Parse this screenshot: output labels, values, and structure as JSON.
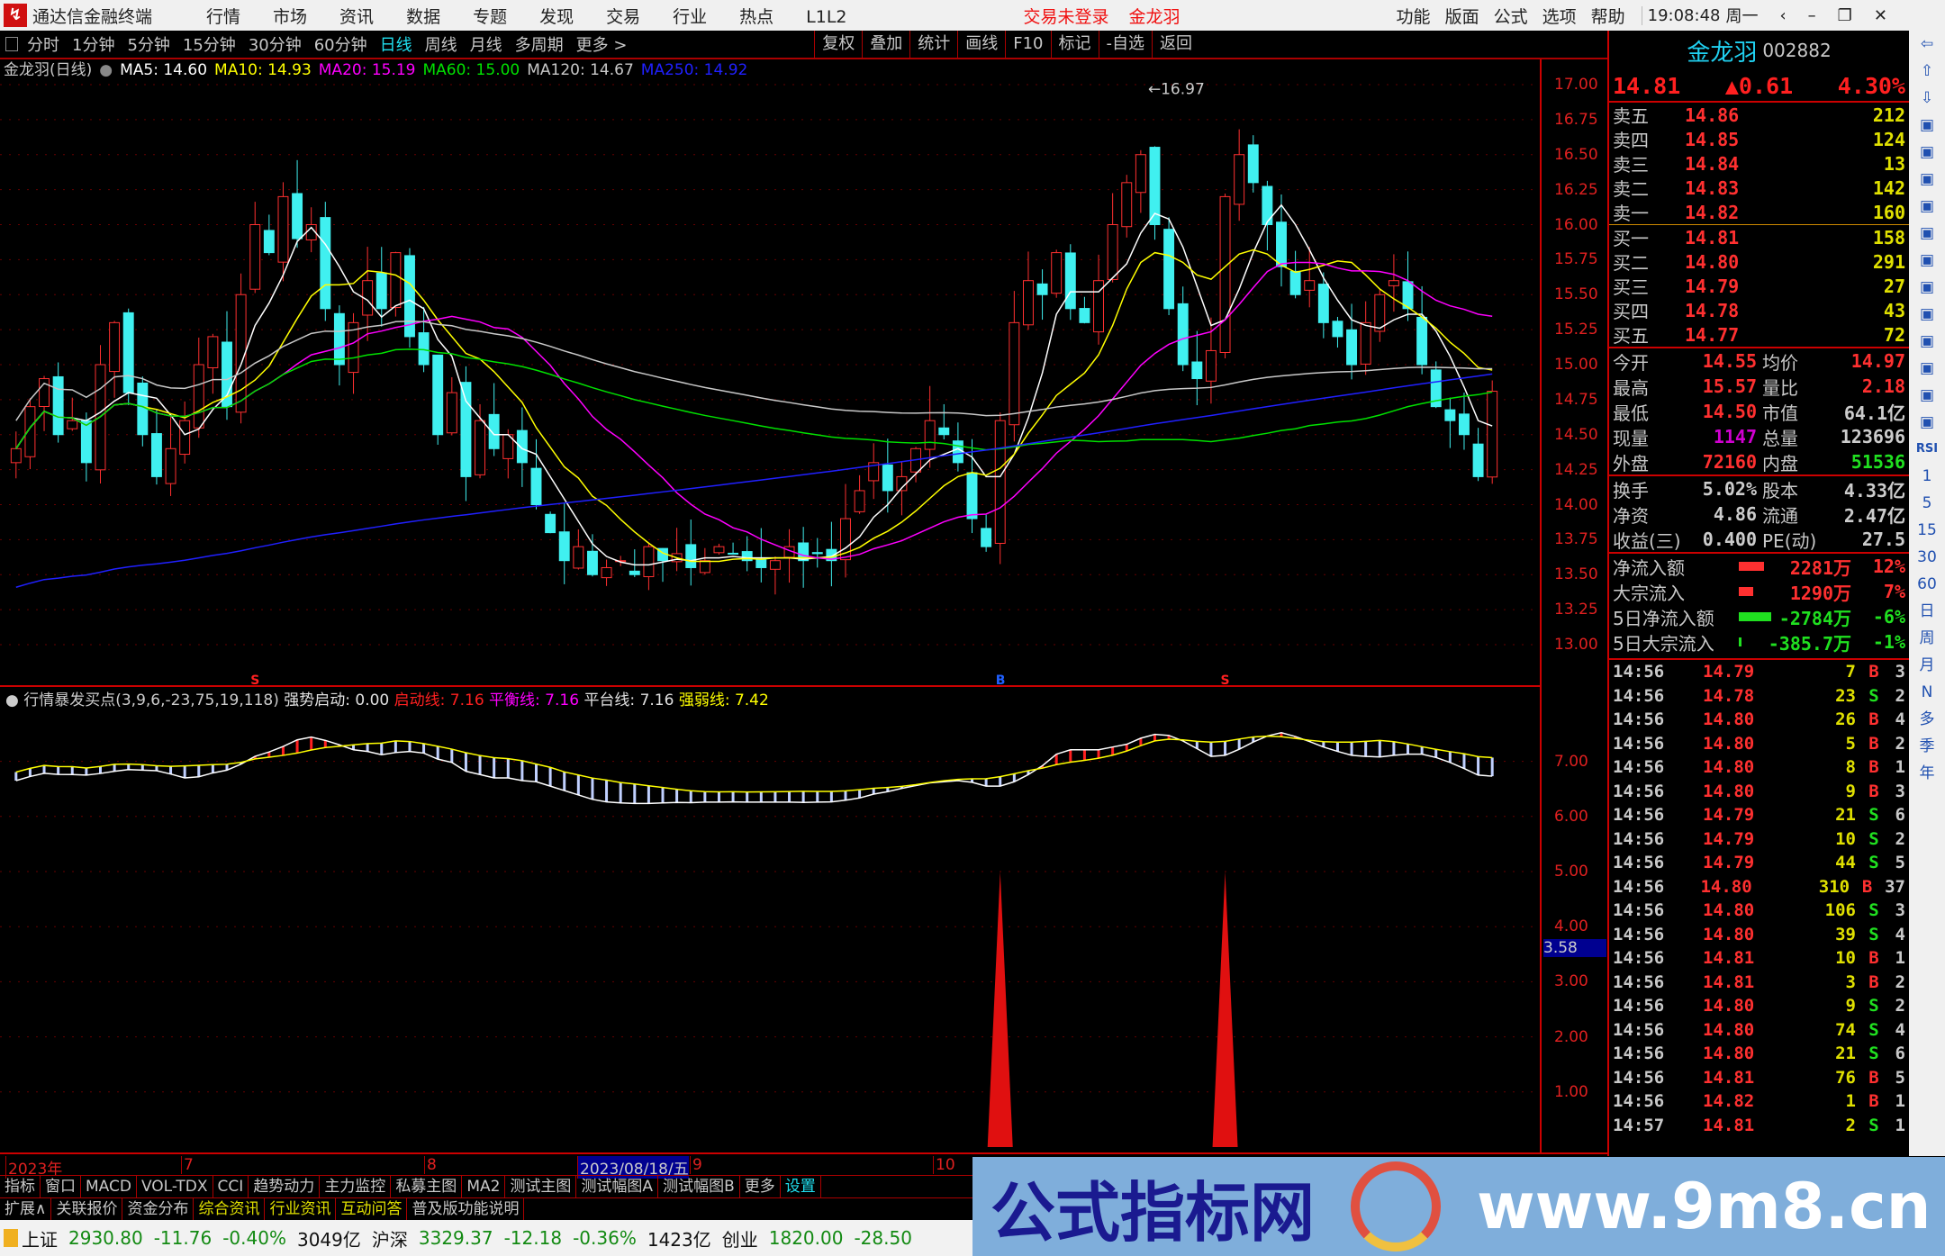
{
  "app": {
    "title": "通达信金融终端",
    "menu": [
      "行情",
      "市场",
      "资讯",
      "数据",
      "专题",
      "发现",
      "交易",
      "行业",
      "热点",
      "L1L2"
    ],
    "login_status": "交易未登录",
    "stock_short": "金龙羽",
    "right_menu": [
      "功能",
      "版面",
      "公式",
      "选项",
      "帮助"
    ],
    "clock": "19:08:48",
    "weekday": "周一"
  },
  "toolbar": {
    "periods": [
      "分时",
      "1分钟",
      "5分钟",
      "15分钟",
      "30分钟",
      "60分钟",
      "日线",
      "周线",
      "月线",
      "多周期",
      "更多 >"
    ],
    "active_period": "日线",
    "buttons": [
      "复权",
      "叠加",
      "统计",
      "画线",
      "F10",
      "标记",
      "-自选",
      "返回"
    ]
  },
  "legend": {
    "name": "金龙羽(日线)",
    "ma": [
      {
        "label": "MA5: 14.60",
        "color": "#ffffff"
      },
      {
        "label": "MA10: 14.93",
        "color": "#ffff00"
      },
      {
        "label": "MA20: 15.19",
        "color": "#ff00ff"
      },
      {
        "label": "MA60: 15.00",
        "color": "#00e000"
      },
      {
        "label": "MA120: 14.67",
        "color": "#c8c8c8"
      },
      {
        "label": "MA250: 14.92",
        "color": "#2020ff"
      }
    ]
  },
  "indicator": {
    "title": "行情暴发买点(3,9,6,-23,75,19,118)",
    "items": [
      {
        "label": "强势启动: 0.00",
        "color": "#e0e0e0"
      },
      {
        "label": "启动线: 7.16",
        "color": "#ff2020"
      },
      {
        "label": "平衡线: 7.16",
        "color": "#ff00ff"
      },
      {
        "label": "平台线: 7.16",
        "color": "#e0e0e0"
      },
      {
        "label": "强弱线: 7.42",
        "color": "#ffff00"
      }
    ],
    "cursor_value": "3.58"
  },
  "chart_data": {
    "type": "candlestick",
    "price_ticks": [
      "17.00",
      "16.75",
      "16.50",
      "16.25",
      "16.00",
      "15.75",
      "15.50",
      "15.25",
      "15.00",
      "14.75",
      "14.50",
      "14.25",
      "14.00",
      "13.75",
      "13.50",
      "13.25",
      "13.00"
    ],
    "ylim": [
      13,
      17
    ],
    "high_label": "16.97",
    "closes": [
      14.4,
      14.7,
      14.9,
      14.5,
      14.6,
      14.3,
      15.0,
      15.3,
      14.8,
      14.5,
      14.2,
      14.4,
      14.6,
      15.0,
      15.2,
      14.7,
      15.5,
      16.0,
      15.8,
      16.2,
      15.9,
      16.0,
      15.4,
      15.0,
      15.3,
      15.6,
      15.4,
      15.8,
      15.2,
      15.0,
      14.5,
      14.8,
      14.2,
      14.6,
      14.4,
      14.5,
      14.3,
      14.0,
      13.8,
      13.6,
      13.7,
      13.5,
      13.55,
      13.6,
      13.5,
      13.7,
      13.6,
      13.65,
      13.55,
      13.6,
      13.7,
      13.65,
      13.6,
      13.55,
      13.6,
      13.7,
      13.6,
      13.65,
      13.6,
      13.9,
      14.1,
      14.3,
      14.1,
      14.2,
      14.4,
      14.6,
      14.5,
      14.3,
      13.9,
      13.7,
      14.6,
      15.3,
      15.6,
      15.5,
      15.8,
      15.4,
      15.3,
      15.6,
      16.0,
      16.3,
      16.5,
      16.0,
      15.4,
      15.0,
      14.9,
      15.1,
      16.2,
      16.5,
      16.3,
      16.0,
      15.7,
      15.5,
      15.6,
      15.3,
      15.2,
      15.0,
      15.3,
      15.5,
      15.6,
      15.4,
      15.0,
      14.7,
      14.6,
      14.5,
      14.2,
      14.81
    ],
    "markers": [
      {
        "index": 17,
        "text": "S",
        "color": "#ff2020"
      },
      {
        "index": 70,
        "text": "B",
        "color": "#2060ff"
      },
      {
        "index": 86,
        "text": "S",
        "color": "#ff2020"
      }
    ],
    "indicator_ticks": [
      "7.00",
      "6.00",
      "5.00",
      "4.00",
      "3.00",
      "2.00",
      "1.00"
    ],
    "indicator_ylim": [
      0,
      8
    ],
    "spikes": [
      {
        "index": 70,
        "value": 5
      },
      {
        "index": 86,
        "value": 5
      }
    ],
    "date_labels": [
      "2023年",
      "7",
      "8",
      "2023/08/18/五",
      "9",
      "10"
    ]
  },
  "quote": {
    "name": "金龙羽",
    "code": "002882",
    "price": "14.81",
    "change": "▲0.61",
    "pct": "4.30%",
    "asks": [
      [
        "卖五",
        "14.86",
        "212"
      ],
      [
        "卖四",
        "14.85",
        "124"
      ],
      [
        "卖三",
        "14.84",
        "13"
      ],
      [
        "卖二",
        "14.83",
        "142"
      ],
      [
        "卖一",
        "14.82",
        "160"
      ]
    ],
    "bids": [
      [
        "买一",
        "14.81",
        "158"
      ],
      [
        "买二",
        "14.80",
        "291"
      ],
      [
        "买三",
        "14.79",
        "27"
      ],
      [
        "买四",
        "14.78",
        "43"
      ],
      [
        "买五",
        "14.77",
        "72"
      ]
    ],
    "stats": [
      [
        "今开",
        "14.55",
        "均价",
        "14.97"
      ],
      [
        "最高",
        "15.57",
        "量比",
        "2.18"
      ],
      [
        "最低",
        "14.50",
        "市值",
        "64.1亿"
      ],
      [
        "现量",
        "1147",
        "总量",
        "123696"
      ],
      [
        "外盘",
        "72160",
        "内盘",
        "51536"
      ]
    ],
    "stats2": [
      [
        "换手",
        "5.02%",
        "股本",
        "4.33亿"
      ],
      [
        "净资",
        "4.86",
        "流通",
        "2.47亿"
      ],
      [
        "收益(三)",
        "0.400",
        "PE(动)",
        "27.5"
      ]
    ],
    "flows": [
      [
        "净流入额",
        "2281万",
        "12%"
      ],
      [
        "大宗流入",
        "1290万",
        "7%"
      ],
      [
        "5日净流入额",
        "-2784万",
        "-6%"
      ],
      [
        "5日大宗流入",
        "-385.7万",
        "-1%"
      ]
    ],
    "ticks": [
      [
        "14:56",
        "14.79",
        "7",
        "B",
        "3"
      ],
      [
        "14:56",
        "14.78",
        "23",
        "S",
        "2"
      ],
      [
        "14:56",
        "14.80",
        "26",
        "B",
        "4"
      ],
      [
        "14:56",
        "14.80",
        "5",
        "B",
        "2"
      ],
      [
        "14:56",
        "14.80",
        "8",
        "B",
        "1"
      ],
      [
        "14:56",
        "14.80",
        "9",
        "B",
        "3"
      ],
      [
        "14:56",
        "14.79",
        "21",
        "S",
        "6"
      ],
      [
        "14:56",
        "14.79",
        "10",
        "S",
        "2"
      ],
      [
        "14:56",
        "14.79",
        "44",
        "S",
        "5"
      ],
      [
        "14:56",
        "14.80",
        "310",
        "B",
        "37"
      ],
      [
        "14:56",
        "14.80",
        "106",
        "S",
        "3"
      ],
      [
        "14:56",
        "14.80",
        "39",
        "S",
        "4"
      ],
      [
        "14:56",
        "14.81",
        "10",
        "B",
        "1"
      ],
      [
        "14:56",
        "14.81",
        "3",
        "B",
        "2"
      ],
      [
        "14:56",
        "14.80",
        "9",
        "S",
        "2"
      ],
      [
        "14:56",
        "14.80",
        "74",
        "S",
        "4"
      ],
      [
        "14:56",
        "14.80",
        "21",
        "S",
        "6"
      ],
      [
        "14:56",
        "14.81",
        "76",
        "B",
        "5"
      ],
      [
        "14:56",
        "14.82",
        "1",
        "B",
        "1"
      ],
      [
        "14:57",
        "14.81",
        "2",
        "S",
        "1"
      ]
    ]
  },
  "side_icons": [
    "left-arrow-icon",
    "up-arrow-icon",
    "down-arrow-icon",
    "list-icon",
    "grid-icon",
    "chart-icon",
    "candle-icon",
    "table-icon",
    "f10-icon",
    "news-icon",
    "fund-icon",
    "f2-icon",
    "clock-icon",
    "circle-icon",
    "line-chart-icon"
  ],
  "side_labels": [
    "RSI",
    "1",
    "5",
    "15",
    "30",
    "60",
    "日",
    "周",
    "月",
    "N",
    "多",
    "季",
    "年"
  ],
  "bottom_tabs1": [
    "指标",
    "窗口",
    "MACD",
    "VOL-TDX",
    "CCI",
    "趋势动力",
    "主力监控",
    "私募主图",
    "MA2",
    "测试主图",
    "测试幅图A",
    "测试幅图B",
    "更多",
    "设置"
  ],
  "bottom_tabs2": [
    "扩展∧",
    "关联报价",
    "资金分布",
    "综合资讯",
    "行业资讯",
    "互动问答",
    "普及版功能说明"
  ],
  "status": [
    {
      "t": "上证",
      "c": "k"
    },
    {
      "t": "2930.80",
      "c": "g"
    },
    {
      "t": "-11.76",
      "c": "g"
    },
    {
      "t": "-0.40%",
      "c": "g"
    },
    {
      "t": "3049亿",
      "c": "k"
    },
    {
      "t": "沪深",
      "c": "k"
    },
    {
      "t": "3329.37",
      "c": "g"
    },
    {
      "t": "-12.18",
      "c": "g"
    },
    {
      "t": "-0.36%",
      "c": "g"
    },
    {
      "t": "1423亿",
      "c": "k"
    },
    {
      "t": "创业",
      "c": "k"
    },
    {
      "t": "1820.00",
      "c": "g"
    },
    {
      "t": "-28.50",
      "c": "g"
    }
  ],
  "watermark": {
    "cn": "公式指标网",
    "url": "www.9m8.cn"
  }
}
